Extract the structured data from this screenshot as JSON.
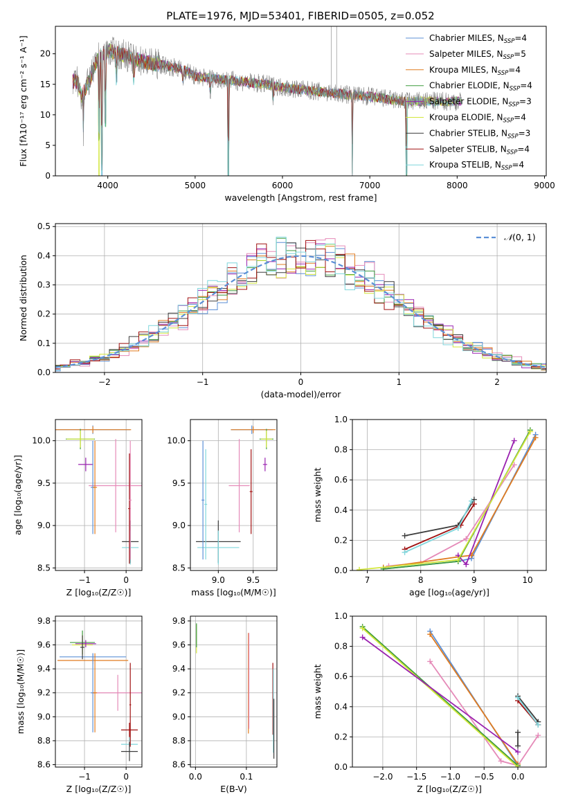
{
  "colors": {
    "Chabrier MILES": "#5b8fd6",
    "Salpeter MILES": "#e58ab8",
    "Kroupa MILES": "#e07b1f",
    "Chabrier ELODIE": "#3d9a3d",
    "Salpeter ELODIE": "#9a22b0",
    "Kroupa ELODIE": "#d2e63a",
    "Chabrier STELIB": "#3c3c3c",
    "Salpeter STELIB": "#a01010",
    "Kroupa STELIB": "#7fd6dc",
    "gaussian": "#5b8fd6",
    "grid": "#b0b0b0"
  },
  "chart_data": [
    {
      "id": "spectrum",
      "type": "line",
      "title": "PLATE=1976, MJD=53401, FIBERID=0505, z=0.052",
      "xlabel": "wavelength [Angstrom, rest frame]",
      "ylabel": "Flux [fλ10⁻¹⁷ erg cm⁻² s⁻¹ A⁻¹]",
      "xlim": [
        3400,
        9020
      ],
      "ylim": [
        0,
        24.5
      ],
      "xticks": [
        4000,
        5000,
        6000,
        7000,
        8000,
        9000
      ],
      "yticks": [
        0,
        5,
        10,
        15,
        20
      ],
      "grid": false,
      "legend_position": "top-right",
      "legend": [
        {
          "key": "Chabrier MILES",
          "label": "Chabrier MILES, N",
          "nssp": "=4"
        },
        {
          "key": "Salpeter MILES",
          "label": "Salpeter MILES, N",
          "nssp": "=5"
        },
        {
          "key": "Kroupa MILES",
          "label": "Kroupa MILES, N",
          "nssp": "=4"
        },
        {
          "key": "Chabrier ELODIE",
          "label": "Chabrier ELODIE, N",
          "nssp": "=4"
        },
        {
          "key": "Salpeter ELODIE",
          "label": "Salpeter ELODIE, N",
          "nssp": "=3"
        },
        {
          "key": "Kroupa ELODIE",
          "label": "Kroupa ELODIE, N",
          "nssp": "=4"
        },
        {
          "key": "Chabrier STELIB",
          "label": "Chabrier STELIB, N",
          "nssp": "=3"
        },
        {
          "key": "Salpeter STELIB",
          "label": "Salpeter STELIB, N",
          "nssp": "=4"
        },
        {
          "key": "Kroupa STELIB",
          "label": "Kroupa STELIB, N",
          "nssp": "=4"
        }
      ],
      "nssp_sub": "SSP",
      "continuum": [
        [
          3650,
          15.5
        ],
        [
          3700,
          13.0
        ],
        [
          3800,
          16.0
        ],
        [
          3900,
          19.5
        ],
        [
          4000,
          20.5
        ],
        [
          4100,
          20.0
        ],
        [
          4200,
          19.8
        ],
        [
          4300,
          19.0
        ],
        [
          4400,
          18.8
        ],
        [
          4500,
          18.5
        ],
        [
          4700,
          18.0
        ],
        [
          4900,
          17.2
        ],
        [
          5000,
          16.3
        ],
        [
          5200,
          16.0
        ],
        [
          5500,
          15.5
        ],
        [
          5800,
          15.0
        ],
        [
          6000,
          14.5
        ],
        [
          6300,
          14.0
        ],
        [
          6600,
          13.5
        ],
        [
          7000,
          13.0
        ],
        [
          7200,
          12.6
        ],
        [
          7400,
          12.2
        ]
      ],
      "data_extent": [
        3600,
        8050
      ],
      "features": [
        {
          "x": 3720,
          "depth": 7.0
        },
        {
          "x": 3900,
          "depth": 13.0
        },
        {
          "x": 3935,
          "depth": 19.0
        },
        {
          "x": 3970,
          "depth": 11.0
        },
        {
          "x": 4102,
          "depth": 4.0
        },
        {
          "x": 4300,
          "depth": 3.0
        },
        {
          "x": 4861,
          "depth": 2.0
        },
        {
          "x": 5175,
          "depth": 2.5
        },
        {
          "x": 5380,
          "depth": 16.0
        },
        {
          "x": 5890,
          "depth": 2.0
        },
        {
          "x": 6800,
          "depth": 13.0
        },
        {
          "x": 7420,
          "depth": 12.0
        }
      ],
      "spike": {
        "x": 6560,
        "top": 24.5,
        "width": 60
      }
    },
    {
      "id": "residuals",
      "type": "step",
      "xlabel": "(data-model)/error",
      "ylabel": "Normed distribution",
      "xlim": [
        -2.5,
        2.5
      ],
      "ylim": [
        0,
        0.51
      ],
      "xticks": [
        -2,
        -1,
        0,
        1,
        2
      ],
      "yticks": [
        0.0,
        0.1,
        0.2,
        0.3,
        0.4,
        0.5
      ],
      "grid": true,
      "bin_width": 0.1,
      "legend_position": "top-right",
      "gaussian_label": "(0, 1)",
      "gaussian_symbol": "𝒩"
    },
    {
      "id": "age-vs-z",
      "type": "errorbar",
      "xlabel": "Z [log₁₀(Z/Z☉)]",
      "ylabel": "age  [log₁₀(age/yr)]",
      "xlim": [
        -1.7,
        0.38
      ],
      "ylim": [
        8.47,
        10.25
      ],
      "xticks": [
        -1,
        0
      ],
      "yticks": [
        8.5,
        9.0,
        9.5,
        10.0
      ],
      "grid": true,
      "points": [
        {
          "key": "Chabrier MILES",
          "x": -0.8,
          "xerr": 0.9,
          "y": 10.13,
          "yerr": 0.05
        },
        {
          "key": "Kroupa MILES",
          "x": -0.8,
          "xerr": 0.92,
          "y": 10.13,
          "yerr": 0.04
        },
        {
          "key": "Chabrier ELODIE",
          "x": -1.1,
          "xerr": 0.35,
          "y": 10.02,
          "yerr": 0.12
        },
        {
          "key": "Kroupa ELODIE",
          "x": -1.1,
          "xerr": 0.33,
          "y": 10.02,
          "yerr": 0.1
        },
        {
          "key": "Salpeter ELODIE",
          "x": -0.97,
          "xerr": 0.18,
          "y": 9.72,
          "yerr": 0.08
        },
        {
          "key": "Salpeter MILES",
          "x": -0.25,
          "xerr": 0.65,
          "y": 9.47,
          "yerr": 0.55
        },
        {
          "key": "Chabrier MILES",
          "x": -0.8,
          "xerr": 0.05,
          "y": 9.45,
          "yerr": 0.55
        },
        {
          "key": "Kroupa MILES",
          "x": -0.75,
          "xerr": 0.05,
          "y": 9.45,
          "yerr": 0.55
        },
        {
          "key": "Chabrier STELIB",
          "x": 0.1,
          "xerr": 0.2,
          "y": 8.81,
          "yerr": 0.25
        },
        {
          "key": "Kroupa STELIB",
          "x": 0.1,
          "xerr": 0.2,
          "y": 8.74,
          "yerr": 0.2
        },
        {
          "key": "Salpeter STELIB",
          "x": 0.08,
          "xerr": 0.03,
          "y": 9.2,
          "yerr": 0.65
        },
        {
          "key": "Salpeter MILES",
          "x": 0.1,
          "xerr": 0.03,
          "y": 9.3,
          "yerr": 0.7
        }
      ]
    },
    {
      "id": "age-vs-mass",
      "type": "errorbar",
      "xlabel": "mass [log₁₀(M/M☉)]",
      "ylabel": "",
      "xlim": [
        8.6,
        9.84
      ],
      "ylim": [
        8.47,
        10.25
      ],
      "xticks": [
        9.0,
        9.5
      ],
      "yticks": [
        8.5,
        9.0,
        9.5,
        10.0
      ],
      "grid": true,
      "points": [
        {
          "key": "Chabrier MILES",
          "x": 9.48,
          "xerr": 0.3,
          "y": 10.13,
          "yerr": 0.05
        },
        {
          "key": "Kroupa MILES",
          "x": 9.5,
          "xerr": 0.32,
          "y": 10.13,
          "yerr": 0.04
        },
        {
          "key": "Chabrier ELODIE",
          "x": 9.69,
          "xerr": 0.1,
          "y": 10.02,
          "yerr": 0.12
        },
        {
          "key": "Kroupa ELODIE",
          "x": 9.69,
          "xerr": 0.08,
          "y": 10.02,
          "yerr": 0.1
        },
        {
          "key": "Salpeter ELODIE",
          "x": 9.67,
          "xerr": 0.03,
          "y": 9.72,
          "yerr": 0.08
        },
        {
          "key": "Salpeter MILES",
          "x": 9.3,
          "xerr": 0.15,
          "y": 9.47,
          "yerr": 0.55
        },
        {
          "key": "Chabrier STELIB",
          "x": 9.0,
          "xerr": 0.32,
          "y": 8.81,
          "yerr": 0.25
        },
        {
          "key": "Kroupa STELIB",
          "x": 9.0,
          "xerr": 0.3,
          "y": 8.74,
          "yerr": 0.2
        },
        {
          "key": "Chabrier MILES",
          "x": 8.78,
          "xerr": 0.02,
          "y": 9.3,
          "yerr": 0.7
        },
        {
          "key": "Kroupa STELIB",
          "x": 8.82,
          "xerr": 0.02,
          "y": 9.25,
          "yerr": 0.65
        },
        {
          "key": "Salpeter STELIB",
          "x": 9.47,
          "xerr": 0.02,
          "y": 9.4,
          "yerr": 0.5
        }
      ]
    },
    {
      "id": "weight-vs-age",
      "type": "line",
      "xlabel": "age  [log₁₀(age/yr)]",
      "ylabel": "mass weight",
      "xlim": [
        6.72,
        10.35
      ],
      "ylim": [
        0,
        1.0
      ],
      "xticks": [
        7,
        8,
        9,
        10
      ],
      "yticks": [
        0.0,
        0.2,
        0.4,
        0.6,
        0.8,
        1.0
      ],
      "grid": true,
      "series": [
        {
          "key": "Chabrier MILES",
          "points": [
            [
              7.3,
              0.01
            ],
            [
              8.7,
              0.06
            ],
            [
              8.95,
              0.08
            ],
            [
              10.15,
              0.9
            ]
          ]
        },
        {
          "key": "Salpeter MILES",
          "points": [
            [
              7.4,
              0.03
            ],
            [
              8.0,
              0.05
            ],
            [
              8.85,
              0.21
            ],
            [
              9.75,
              0.7
            ]
          ]
        },
        {
          "key": "Kroupa MILES",
          "points": [
            [
              7.3,
              0.02
            ],
            [
              8.7,
              0.09
            ],
            [
              8.95,
              0.1
            ],
            [
              10.15,
              0.88
            ]
          ]
        },
        {
          "key": "Chabrier ELODIE",
          "points": [
            [
              7.3,
              0.01
            ],
            [
              8.7,
              0.06
            ],
            [
              10.05,
              0.93
            ]
          ]
        },
        {
          "key": "Salpeter ELODIE",
          "points": [
            [
              8.7,
              0.1
            ],
            [
              8.85,
              0.04
            ],
            [
              9.75,
              0.86
            ]
          ]
        },
        {
          "key": "Kroupa ELODIE",
          "points": [
            [
              6.85,
              0.005
            ],
            [
              8.7,
              0.07
            ],
            [
              10.05,
              0.92
            ]
          ]
        },
        {
          "key": "Chabrier STELIB",
          "points": [
            [
              7.7,
              0.23
            ],
            [
              8.7,
              0.3
            ],
            [
              9.0,
              0.47
            ]
          ]
        },
        {
          "key": "Salpeter STELIB",
          "points": [
            [
              7.7,
              0.14
            ],
            [
              8.75,
              0.3
            ],
            [
              9.0,
              0.44
            ]
          ]
        },
        {
          "key": "Kroupa STELIB",
          "points": [
            [
              7.7,
              0.12
            ],
            [
              8.7,
              0.28
            ],
            [
              8.95,
              0.46
            ]
          ]
        }
      ]
    },
    {
      "id": "mass-vs-z",
      "type": "errorbar",
      "xlabel": "Z [log₁₀(Z/Z☉)]",
      "ylabel": "mass [log₁₀(M/M☉)]",
      "xlim": [
        -1.7,
        0.38
      ],
      "ylim": [
        8.58,
        9.84
      ],
      "xticks": [
        -1,
        0
      ],
      "yticks": [
        8.6,
        8.8,
        9.0,
        9.2,
        9.4,
        9.6,
        9.8
      ],
      "grid": true,
      "points": [
        {
          "key": "Chabrier MILES",
          "x": -0.8,
          "xerr": 0.8,
          "y": 9.5,
          "yerr": 0.03
        },
        {
          "key": "Kroupa MILES",
          "x": -0.8,
          "xerr": 0.85,
          "y": 9.47,
          "yerr": 0.03
        },
        {
          "key": "Chabrier ELODIE",
          "x": -1.05,
          "xerr": 0.3,
          "y": 9.62,
          "yerr": 0.1
        },
        {
          "key": "Kroupa ELODIE",
          "x": -1.05,
          "xerr": 0.25,
          "y": 9.6,
          "yerr": 0.08
        },
        {
          "key": "Salpeter ELODIE",
          "x": -0.97,
          "xerr": 0.25,
          "y": 9.61,
          "yerr": 0.03
        },
        {
          "key": "Chabrier STELIB",
          "x": -1.05,
          "xerr": 0.05,
          "y": 9.58,
          "yerr": 0.1
        },
        {
          "key": "Salpeter MILES",
          "x": -0.2,
          "xerr": 0.62,
          "y": 9.2,
          "yerr": 0.15
        },
        {
          "key": "Chabrier MILES",
          "x": -0.8,
          "xerr": 0.05,
          "y": 9.2,
          "yerr": 0.33
        },
        {
          "key": "Kroupa MILES",
          "x": -0.75,
          "xerr": 0.05,
          "y": 9.2,
          "yerr": 0.33
        },
        {
          "key": "Salpeter STELIB",
          "x": 0.08,
          "xerr": 0.2,
          "y": 8.89,
          "yerr": 0.06
        },
        {
          "key": "Kroupa STELIB",
          "x": 0.08,
          "xerr": 0.2,
          "y": 8.77,
          "yerr": 0.06
        },
        {
          "key": "Chabrier STELIB",
          "x": 0.08,
          "xerr": 0.2,
          "y": 8.71,
          "yerr": 0.08
        },
        {
          "key": "Salpeter STELIB",
          "x": 0.1,
          "xerr": 0.02,
          "y": 9.1,
          "yerr": 0.35
        }
      ]
    },
    {
      "id": "mass-vs-ebv",
      "type": "errorbar",
      "xlabel": "E(B-V)",
      "ylabel": "",
      "xlim": [
        -0.01,
        0.16
      ],
      "ylim": [
        8.58,
        9.84
      ],
      "xticks": [
        0.0,
        0.1
      ],
      "yticks": [
        8.6,
        8.8,
        9.0,
        9.2,
        9.4,
        9.6,
        9.8
      ],
      "grid": true,
      "points": [
        {
          "key": "Kroupa ELODIE",
          "x": 0.002,
          "xerr": 0.0,
          "y": 9.65,
          "yerr": 0.12
        },
        {
          "key": "Chabrier ELODIE",
          "x": 0.002,
          "xerr": 0.0,
          "y": 9.68,
          "yerr": 0.1
        },
        {
          "key": "Kroupa MILES",
          "x": 0.104,
          "xerr": 0.0,
          "y": 9.28,
          "yerr": 0.42
        },
        {
          "key": "Salpeter MILES",
          "x": 0.105,
          "xerr": 0.0,
          "y": 9.3,
          "yerr": 0.4
        },
        {
          "key": "Salpeter STELIB",
          "x": 0.152,
          "xerr": 0.0,
          "y": 9.15,
          "yerr": 0.3
        },
        {
          "key": "Kroupa STELIB",
          "x": 0.153,
          "xerr": 0.0,
          "y": 9.05,
          "yerr": 0.35
        },
        {
          "key": "Chabrier STELIB",
          "x": 0.154,
          "xerr": 0.0,
          "y": 8.9,
          "yerr": 0.25
        }
      ]
    },
    {
      "id": "weight-vs-z",
      "type": "line",
      "xlabel": "Z [log₁₀(Z/Z☉)]",
      "ylabel": "mass weight",
      "xlim": [
        -2.45,
        0.42
      ],
      "ylim": [
        0,
        1.0
      ],
      "xticks": [
        -2.0,
        -1.5,
        -1.0,
        -0.5,
        0.0
      ],
      "yticks": [
        0.0,
        0.2,
        0.4,
        0.6,
        0.8,
        1.0
      ],
      "grid": true,
      "series": [
        {
          "key": "Chabrier MILES",
          "points": [
            [
              -1.3,
              0.9
            ],
            [
              0.0,
              0.01
            ]
          ]
        },
        {
          "key": "Kroupa MILES",
          "points": [
            [
              -1.3,
              0.88
            ],
            [
              0.0,
              0.02
            ]
          ]
        },
        {
          "key": "Salpeter MILES",
          "points": [
            [
              -1.3,
              0.7
            ],
            [
              -0.25,
              0.04
            ],
            [
              0.0,
              0.01
            ],
            [
              0.3,
              0.21
            ]
          ]
        },
        {
          "key": "Chabrier ELODIE",
          "points": [
            [
              -2.3,
              0.93
            ],
            [
              0.0,
              0.01
            ]
          ]
        },
        {
          "key": "Kroupa ELODIE",
          "points": [
            [
              -2.3,
              0.92
            ],
            [
              0.0,
              0.0
            ]
          ]
        },
        {
          "key": "Salpeter ELODIE",
          "points": [
            [
              -2.3,
              0.86
            ],
            [
              0.0,
              0.1
            ]
          ]
        },
        {
          "key": "Chabrier STELIB",
          "points": [
            [
              0.0,
              0.47
            ],
            [
              0.3,
              0.3
            ]
          ]
        },
        {
          "key": "Salpeter STELIB",
          "points": [
            [
              0.0,
              0.44
            ],
            [
              0.3,
              0.28
            ]
          ]
        },
        {
          "key": "Kroupa STELIB",
          "points": [
            [
              0.0,
              0.46
            ],
            [
              0.3,
              0.28
            ]
          ]
        },
        {
          "key": "Chabrier STELIB",
          "points": [
            [
              0.0,
              0.23
            ],
            [
              0.0,
              0.14
            ]
          ]
        }
      ]
    }
  ]
}
